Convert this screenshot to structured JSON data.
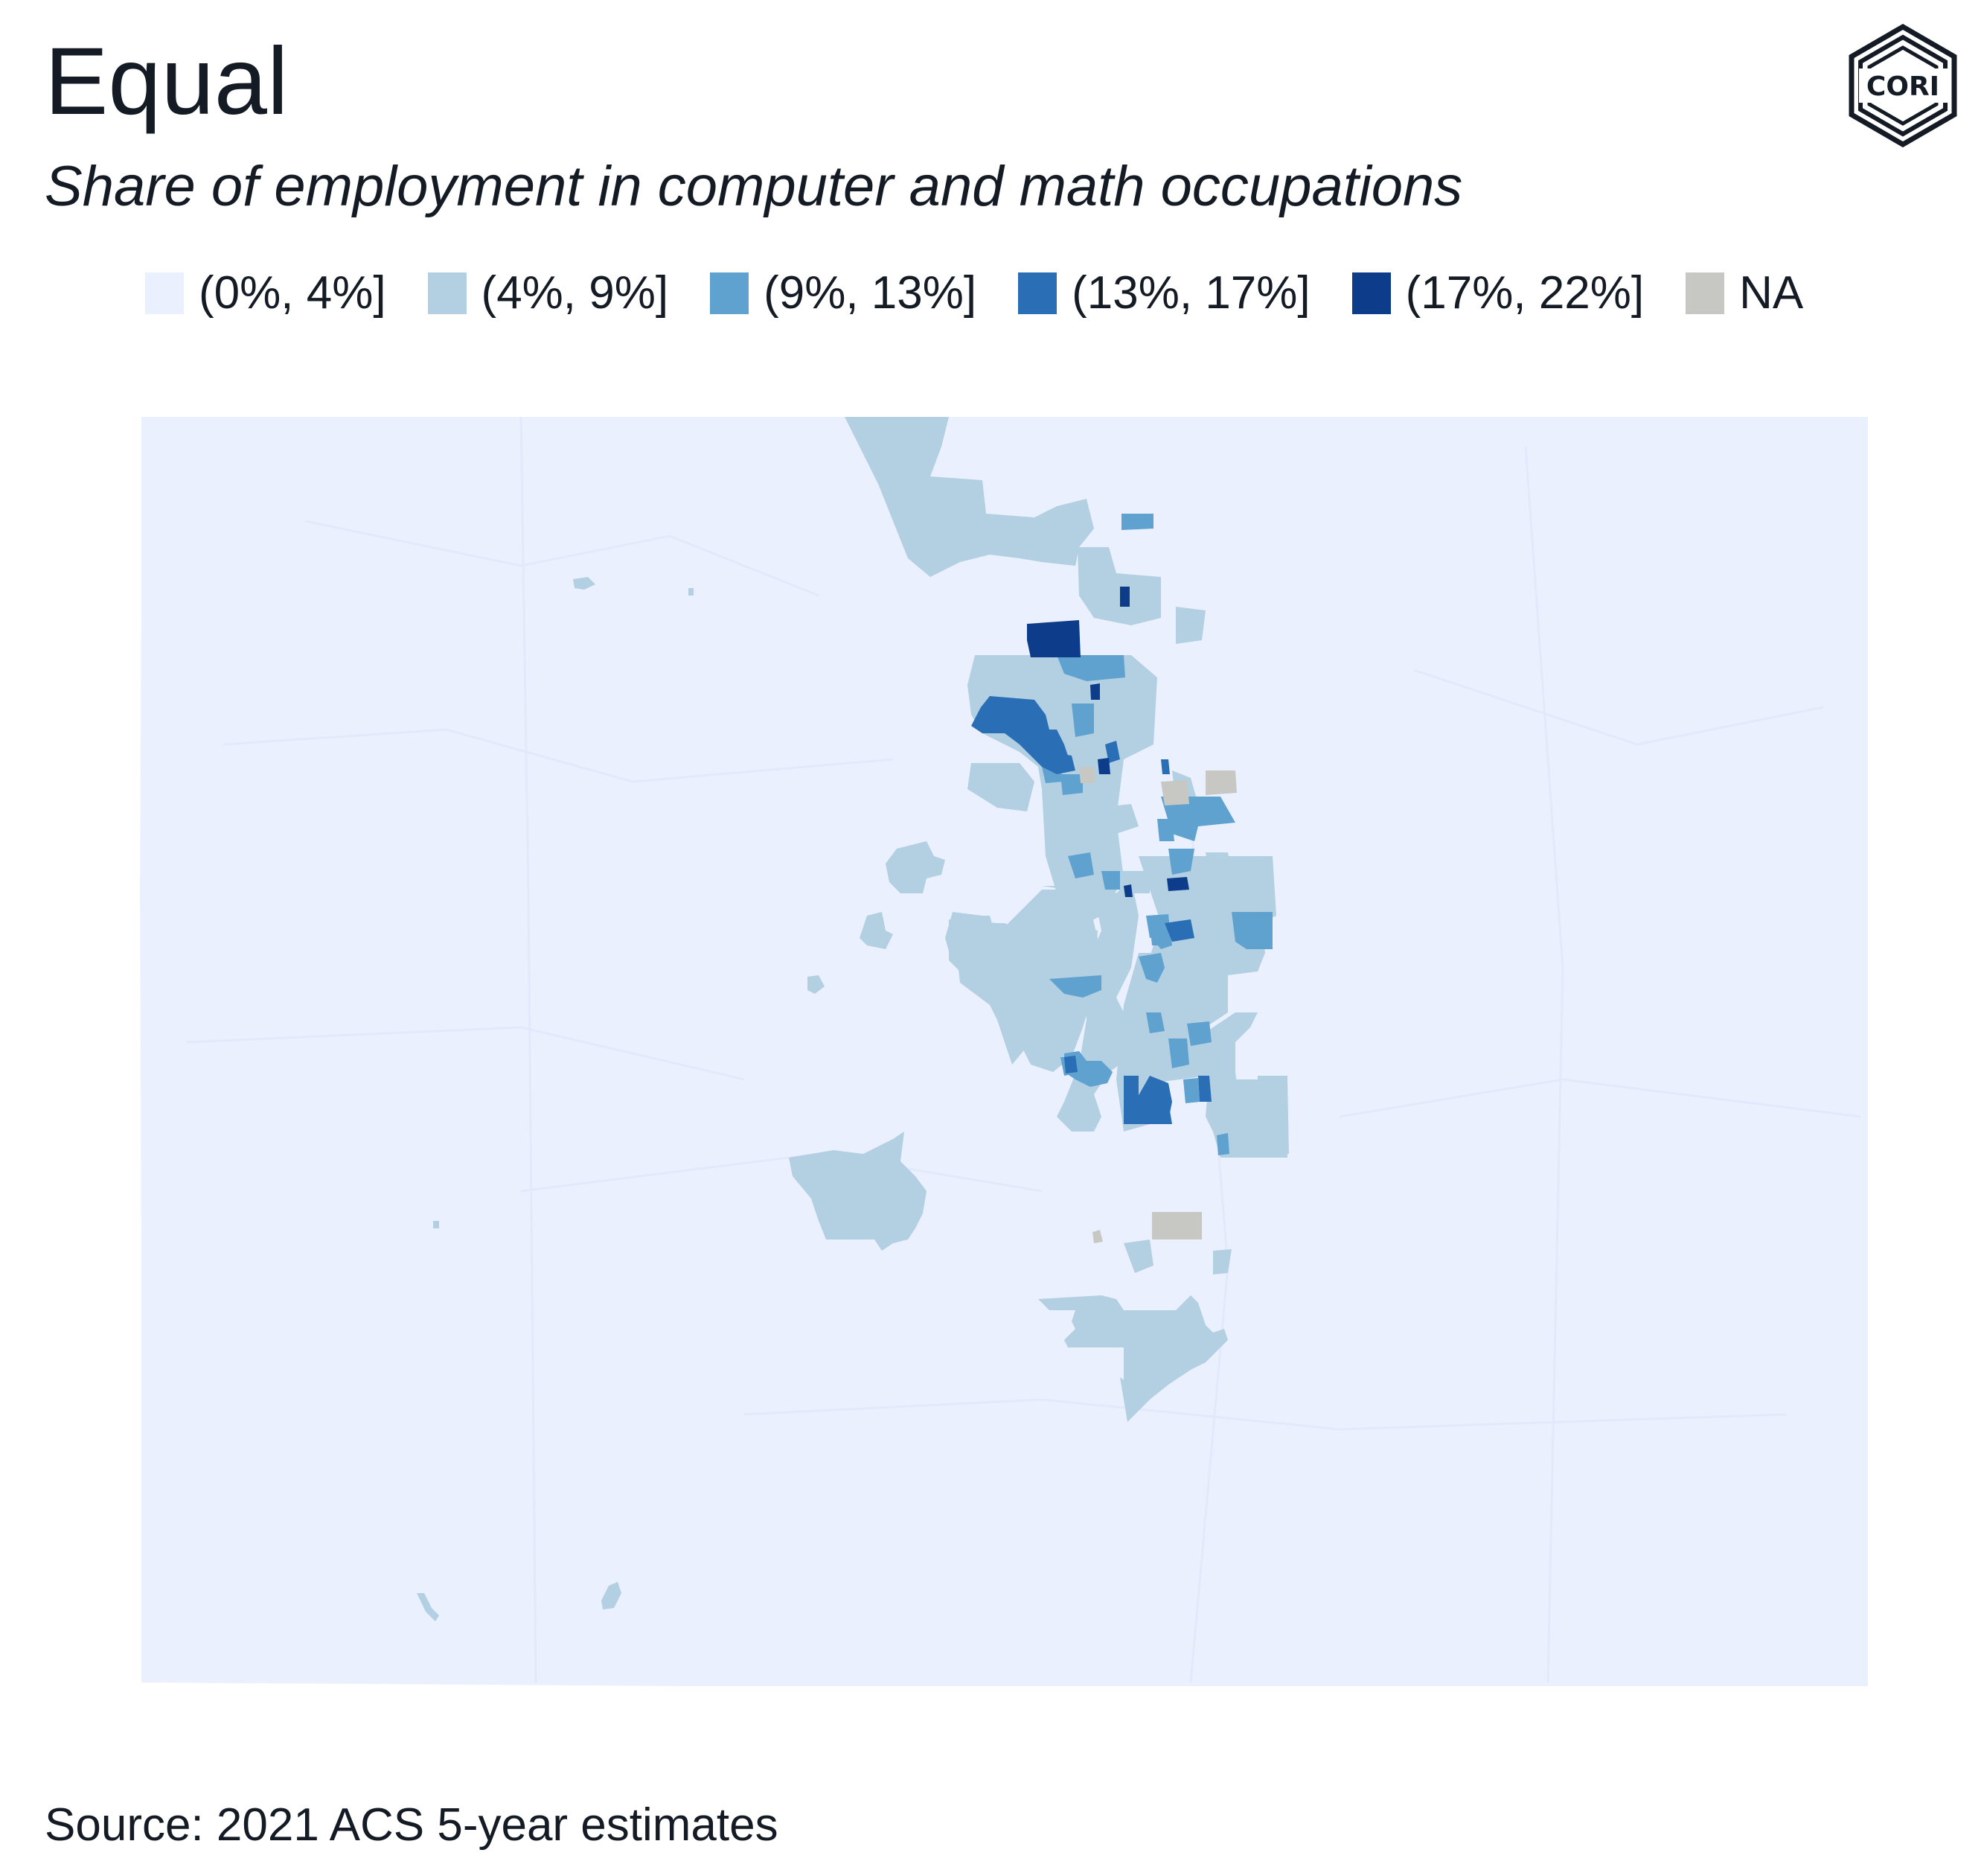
{
  "header": {
    "title": "Equal",
    "subtitle": "Share of employment in computer and math occupations"
  },
  "logo": {
    "text": "CORI",
    "icon": "cori-hexagon-logo-icon"
  },
  "legend": {
    "items": [
      {
        "label": "(0%, 4%]",
        "color": "#ebf0fe"
      },
      {
        "label": "(4%, 9%]",
        "color": "#b3cfe2"
      },
      {
        "label": "(9%, 13%]",
        "color": "#5fa1cf"
      },
      {
        "label": "(13%, 17%]",
        "color": "#2a6eb5"
      },
      {
        "label": "(17%, 22%]",
        "color": "#0c3c8a"
      },
      {
        "label": "NA",
        "color": "#c7c8c4"
      }
    ]
  },
  "footer": {
    "source": "Source: 2021 ACS 5-year estimates"
  }
}
